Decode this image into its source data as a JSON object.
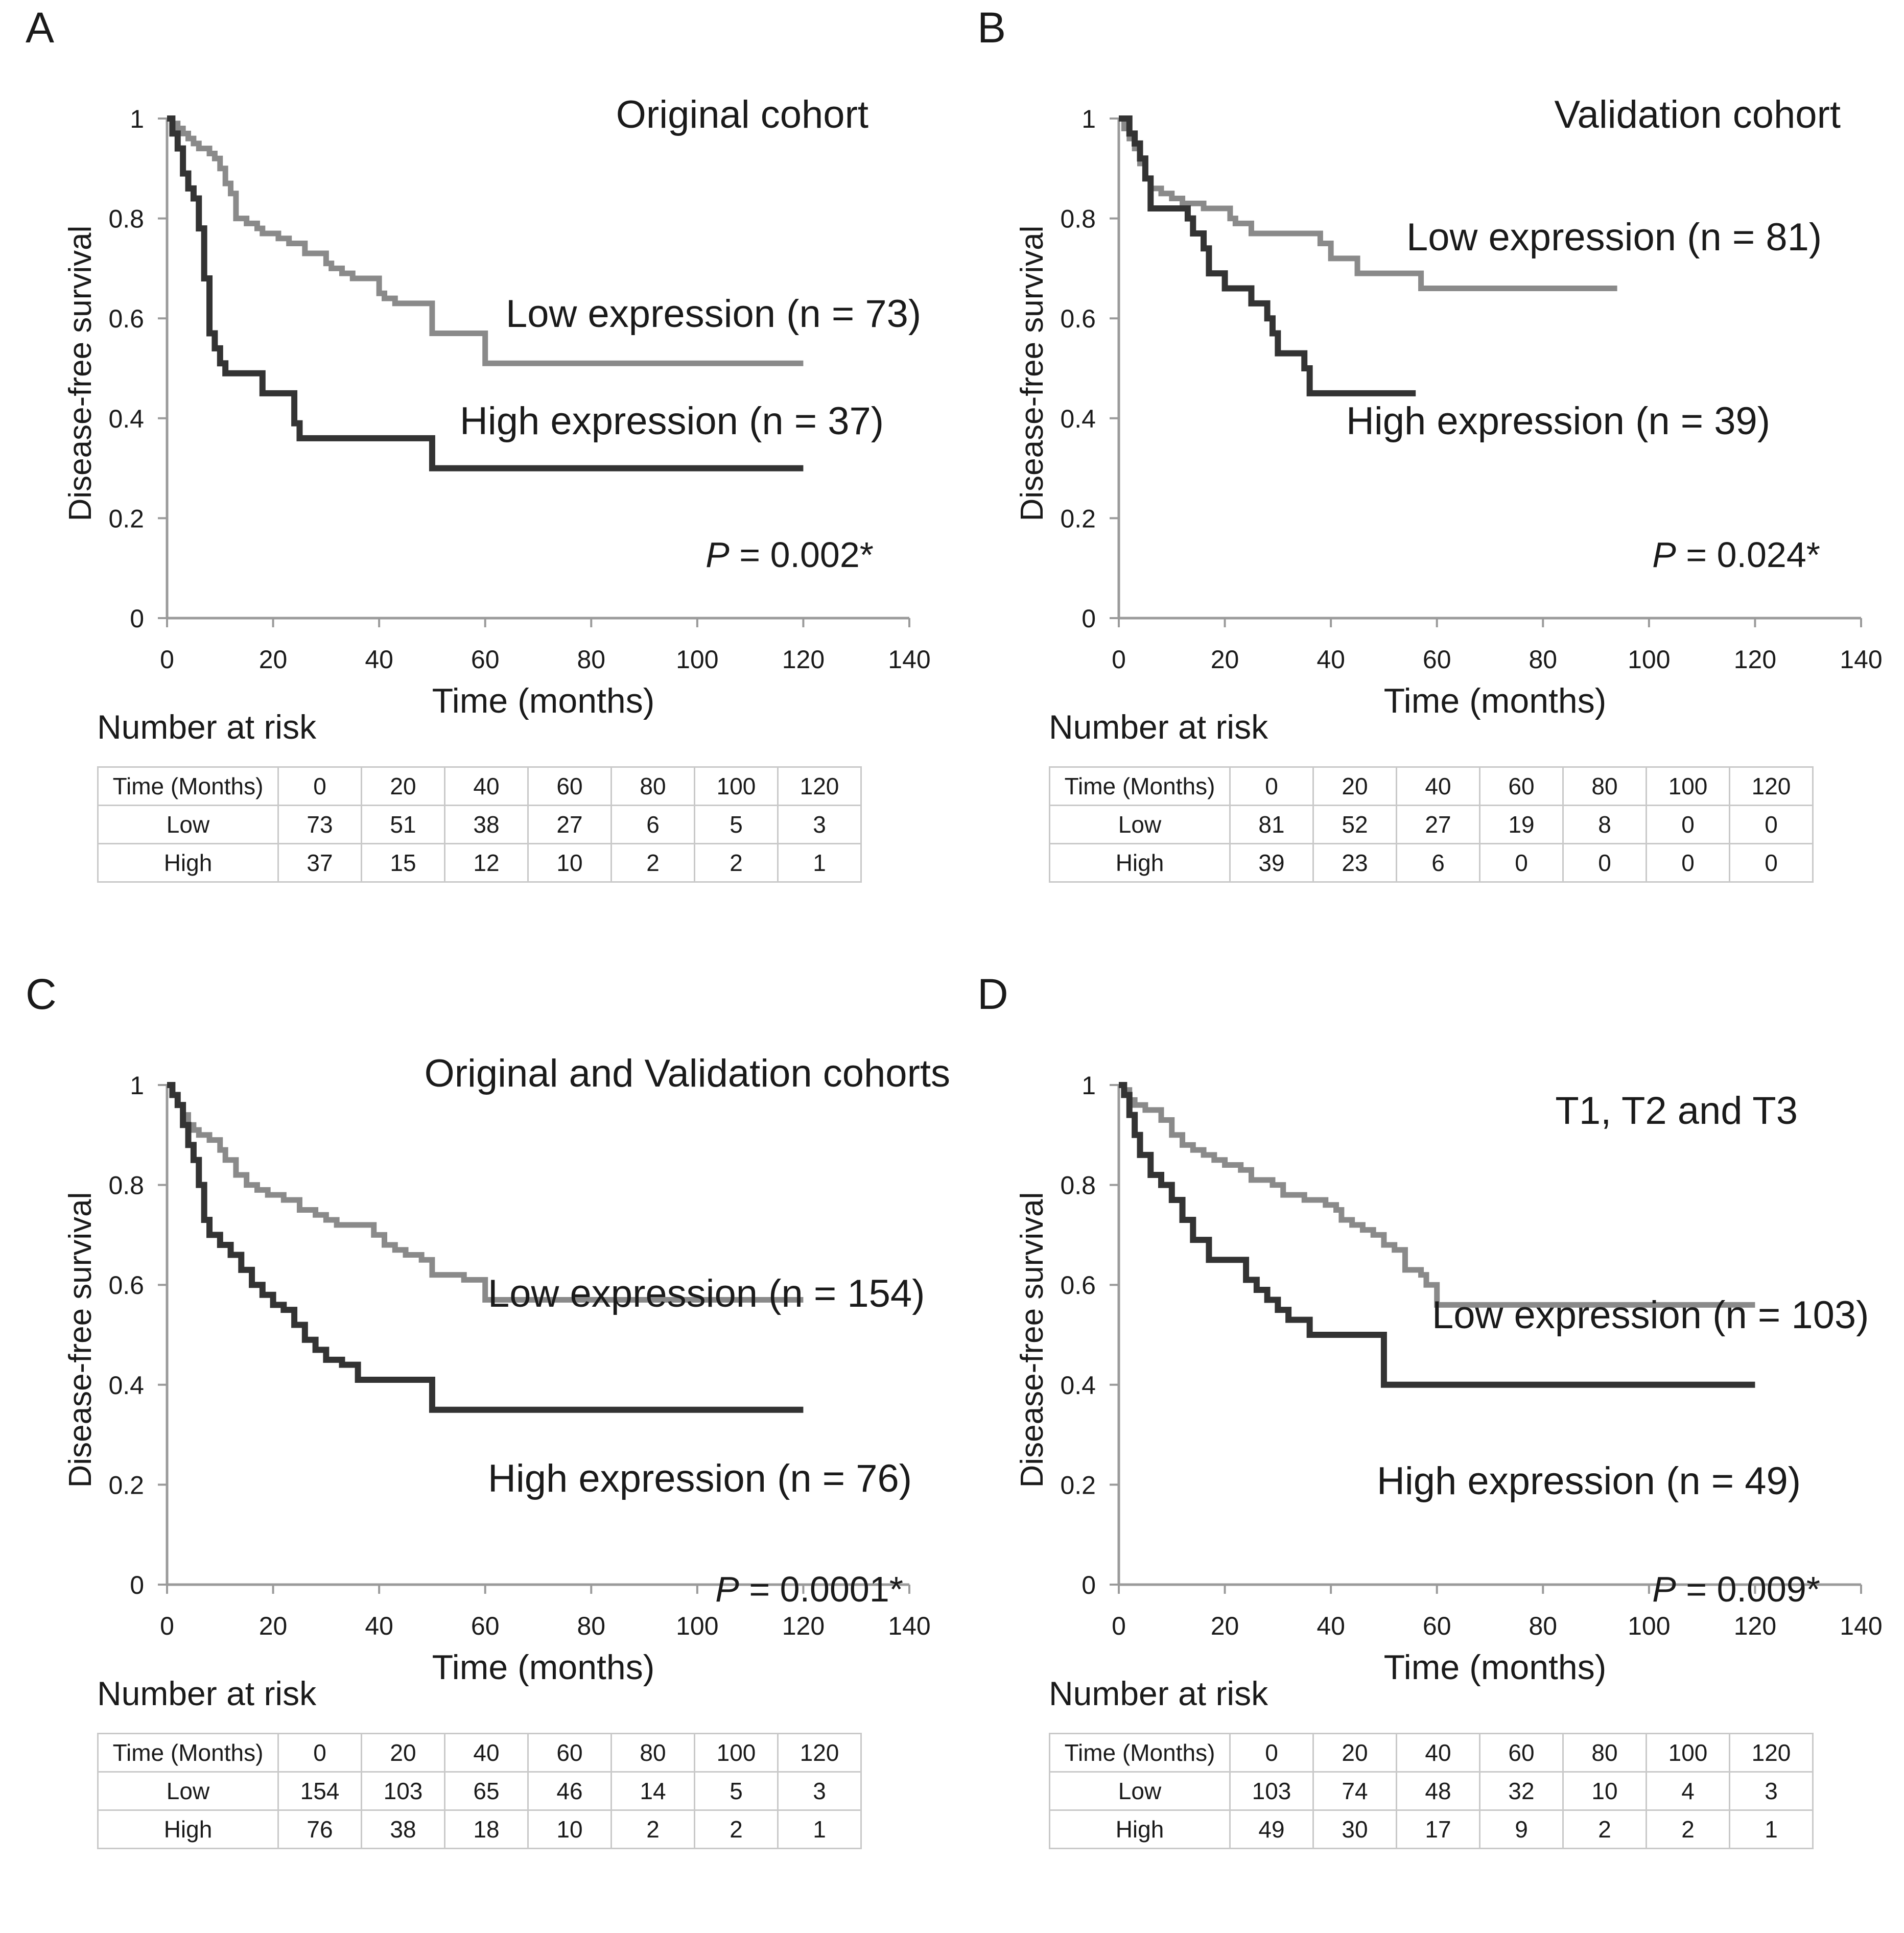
{
  "figure": {
    "panels": [
      {
        "letter": "A",
        "risk_heading": "Number at risk",
        "risk_table": {
          "header": [
            "Time (Months)",
            "0",
            "20",
            "40",
            "60",
            "80",
            "100",
            "120"
          ],
          "rows": [
            [
              "Low",
              "73",
              "51",
              "38",
              "27",
              "6",
              "5",
              "3"
            ],
            [
              "High",
              "37",
              "15",
              "12",
              "10",
              "2",
              "2",
              "1"
            ]
          ]
        }
      },
      {
        "letter": "B",
        "risk_heading": "Number at risk",
        "risk_table": {
          "header": [
            "Time (Months)",
            "0",
            "20",
            "40",
            "60",
            "80",
            "100",
            "120"
          ],
          "rows": [
            [
              "Low",
              "81",
              "52",
              "27",
              "19",
              "8",
              "0",
              "0"
            ],
            [
              "High",
              "39",
              "23",
              "6",
              "0",
              "0",
              "0",
              "0"
            ]
          ]
        }
      },
      {
        "letter": "C",
        "risk_heading": "Number at risk",
        "risk_table": {
          "header": [
            "Time (Months)",
            "0",
            "20",
            "40",
            "60",
            "80",
            "100",
            "120"
          ],
          "rows": [
            [
              "Low",
              "154",
              "103",
              "65",
              "46",
              "14",
              "5",
              "3"
            ],
            [
              "High",
              "76",
              "38",
              "18",
              "10",
              "2",
              "2",
              "1"
            ]
          ]
        }
      },
      {
        "letter": "D",
        "risk_heading": "Number at risk",
        "risk_table": {
          "header": [
            "Time (Months)",
            "0",
            "20",
            "40",
            "60",
            "80",
            "100",
            "120"
          ],
          "rows": [
            [
              "Low",
              "103",
              "74",
              "48",
              "32",
              "10",
              "4",
              "3"
            ],
            [
              "High",
              "49",
              "30",
              "17",
              "9",
              "2",
              "2",
              "1"
            ]
          ]
        }
      }
    ]
  },
  "chart_data": [
    {
      "type": "line",
      "chart_style": "kaplan-meier step",
      "title": "Original cohort",
      "xlabel": "Time (months)",
      "ylabel": "Disease-free survival",
      "xlim": [
        0,
        140
      ],
      "ylim": [
        0,
        1
      ],
      "xticks": [
        "0",
        "20",
        "40",
        "60",
        "80",
        "100",
        "120",
        "140"
      ],
      "yticks": [
        "0",
        "0.2",
        "0.4",
        "0.6",
        "0.8",
        "1"
      ],
      "p_label": "P",
      "p_value": " = 0.002*",
      "series": [
        {
          "name": "Low expression (n = 73)",
          "color": "#8a8a8a",
          "x": [
            0,
            1,
            2,
            3,
            4,
            5,
            6,
            8,
            9,
            10,
            11,
            12,
            13,
            15,
            17,
            18,
            21,
            23,
            26,
            30,
            31,
            33,
            35,
            38,
            40,
            41,
            43,
            46,
            50,
            55,
            60,
            120
          ],
          "y": [
            1.0,
            0.99,
            0.98,
            0.97,
            0.96,
            0.95,
            0.94,
            0.93,
            0.92,
            0.9,
            0.87,
            0.85,
            0.8,
            0.79,
            0.78,
            0.77,
            0.76,
            0.75,
            0.73,
            0.71,
            0.7,
            0.69,
            0.68,
            0.68,
            0.65,
            0.64,
            0.63,
            0.63,
            0.57,
            0.57,
            0.51,
            0.51
          ]
        },
        {
          "name": "High expression (n = 37)",
          "color": "#333333",
          "x": [
            0,
            1,
            2,
            3,
            4,
            5,
            6,
            7,
            8,
            9,
            10,
            11,
            12,
            18,
            21,
            24,
            25,
            50,
            120
          ],
          "y": [
            1.0,
            0.97,
            0.94,
            0.89,
            0.86,
            0.84,
            0.78,
            0.68,
            0.57,
            0.54,
            0.51,
            0.49,
            0.49,
            0.45,
            0.45,
            0.39,
            0.36,
            0.3,
            0.3
          ]
        }
      ]
    },
    {
      "type": "line",
      "chart_style": "kaplan-meier step",
      "title": "Validation cohort",
      "xlabel": "Time (months)",
      "ylabel": "Disease-free survival",
      "xlim": [
        0,
        140
      ],
      "ylim": [
        0,
        1
      ],
      "xticks": [
        "0",
        "20",
        "40",
        "60",
        "80",
        "100",
        "120",
        "140"
      ],
      "yticks": [
        "0",
        "0.2",
        "0.4",
        "0.6",
        "0.8",
        "1"
      ],
      "p_label": "P",
      "p_value": " = 0.024*",
      "series": [
        {
          "name": "Low expression (n = 81)",
          "color": "#8a8a8a",
          "x": [
            0,
            1,
            2,
            3,
            4,
            5,
            6,
            8,
            10,
            12,
            16,
            21,
            22,
            25,
            38,
            40,
            45,
            57,
            94
          ],
          "y": [
            1.0,
            0.98,
            0.96,
            0.94,
            0.91,
            0.88,
            0.86,
            0.85,
            0.84,
            0.83,
            0.82,
            0.8,
            0.79,
            0.77,
            0.75,
            0.72,
            0.69,
            0.66,
            0.66
          ]
        },
        {
          "name": "High expression (n = 39)",
          "color": "#333333",
          "x": [
            0,
            2,
            3,
            4,
            5,
            6,
            12,
            13,
            14,
            16,
            17,
            20,
            25,
            28,
            29,
            30,
            35,
            36,
            56
          ],
          "y": [
            1.0,
            0.97,
            0.95,
            0.92,
            0.88,
            0.82,
            0.82,
            0.8,
            0.77,
            0.74,
            0.69,
            0.66,
            0.63,
            0.6,
            0.57,
            0.53,
            0.5,
            0.45,
            0.45
          ]
        }
      ]
    },
    {
      "type": "line",
      "chart_style": "kaplan-meier step",
      "title": "Original and Validation cohorts",
      "xlabel": "Time (months)",
      "ylabel": "Disease-free survival",
      "xlim": [
        0,
        140
      ],
      "ylim": [
        0,
        1
      ],
      "xticks": [
        "0",
        "20",
        "40",
        "60",
        "80",
        "100",
        "120",
        "140"
      ],
      "yticks": [
        "0",
        "0.2",
        "0.4",
        "0.6",
        "0.8",
        "1"
      ],
      "p_label": "P",
      "p_value": " = 0.0001*",
      "series": [
        {
          "name": "Low expression (n = 154)",
          "color": "#8a8a8a",
          "x": [
            0,
            1,
            2,
            3,
            4,
            5,
            6,
            8,
            10,
            11,
            13,
            15,
            17,
            19,
            22,
            25,
            28,
            30,
            32,
            35,
            39,
            41,
            43,
            45,
            48,
            50,
            56,
            60,
            120
          ],
          "y": [
            1.0,
            0.98,
            0.96,
            0.94,
            0.92,
            0.91,
            0.9,
            0.89,
            0.87,
            0.85,
            0.82,
            0.8,
            0.79,
            0.78,
            0.77,
            0.75,
            0.74,
            0.73,
            0.72,
            0.72,
            0.7,
            0.68,
            0.67,
            0.66,
            0.65,
            0.62,
            0.61,
            0.57,
            0.57
          ]
        },
        {
          "name": "High expression (n = 76)",
          "color": "#333333",
          "x": [
            0,
            1,
            2,
            3,
            4,
            5,
            6,
            7,
            8,
            10,
            12,
            14,
            16,
            18,
            20,
            22,
            24,
            26,
            28,
            30,
            33,
            36,
            50,
            120
          ],
          "y": [
            1.0,
            0.98,
            0.96,
            0.92,
            0.88,
            0.85,
            0.8,
            0.73,
            0.7,
            0.68,
            0.66,
            0.63,
            0.6,
            0.58,
            0.56,
            0.55,
            0.52,
            0.49,
            0.47,
            0.45,
            0.44,
            0.41,
            0.35,
            0.35
          ]
        }
      ]
    },
    {
      "type": "line",
      "chart_style": "kaplan-meier step",
      "title": "T1, T2 and T3",
      "xlabel": "Time (months)",
      "ylabel": "Disease-free survival",
      "xlim": [
        0,
        140
      ],
      "ylim": [
        0,
        1
      ],
      "xticks": [
        "0",
        "20",
        "40",
        "60",
        "80",
        "100",
        "120",
        "140"
      ],
      "yticks": [
        "0",
        "0.2",
        "0.4",
        "0.6",
        "0.8",
        "1"
      ],
      "p_label": "P",
      "p_value": " = 0.009*",
      "series": [
        {
          "name": "Low expression (n = 103)",
          "color": "#8a8a8a",
          "x": [
            0,
            1,
            2,
            3,
            5,
            8,
            10,
            12,
            14,
            16,
            18,
            20,
            23,
            25,
            29,
            31,
            35,
            39,
            41,
            42,
            44,
            46,
            48,
            50,
            52,
            54,
            57,
            58,
            60,
            120
          ],
          "y": [
            1.0,
            0.99,
            0.97,
            0.96,
            0.95,
            0.93,
            0.9,
            0.88,
            0.87,
            0.86,
            0.85,
            0.84,
            0.83,
            0.81,
            0.8,
            0.78,
            0.77,
            0.76,
            0.75,
            0.73,
            0.72,
            0.71,
            0.7,
            0.68,
            0.67,
            0.63,
            0.62,
            0.6,
            0.56,
            0.56
          ]
        },
        {
          "name": "High expression (n = 49)",
          "color": "#333333",
          "x": [
            0,
            1,
            2,
            3,
            4,
            6,
            8,
            10,
            12,
            14,
            17,
            24,
            26,
            28,
            30,
            32,
            36,
            50,
            120
          ],
          "y": [
            1.0,
            0.98,
            0.94,
            0.9,
            0.86,
            0.82,
            0.8,
            0.77,
            0.73,
            0.69,
            0.65,
            0.61,
            0.59,
            0.57,
            0.55,
            0.53,
            0.5,
            0.4,
            0.4
          ]
        }
      ]
    }
  ]
}
